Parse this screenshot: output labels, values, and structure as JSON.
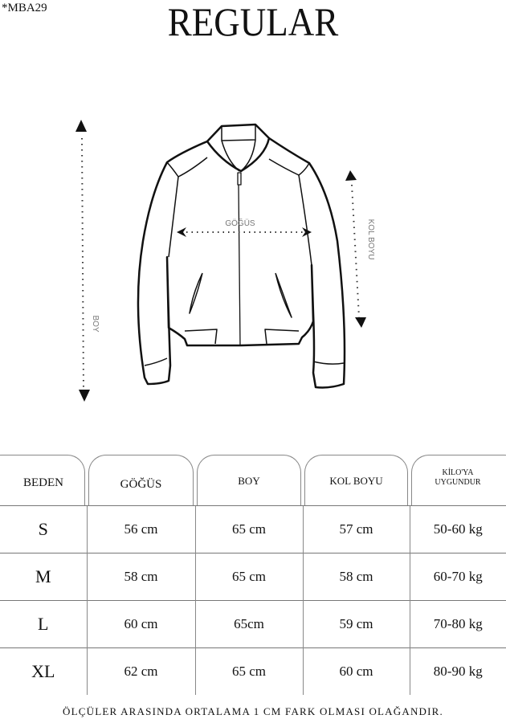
{
  "product_code": "*MBA29",
  "fit_title": "REGULAR",
  "diagram": {
    "chest_label": "GÖĞÜS",
    "length_label": "BOY",
    "sleeve_label": "KOL BOYU"
  },
  "table": {
    "headers": [
      "BEDEN",
      "GÖĞÜS",
      "BOY",
      "KOL BOYU",
      "KİLO'YA",
      "UYGUNDUR"
    ],
    "rows": [
      [
        "S",
        "56 cm",
        "65 cm",
        "57  cm",
        "50-60 kg"
      ],
      [
        "M",
        "58 cm",
        "65 cm",
        "58 cm",
        "60-70 kg"
      ],
      [
        "L",
        "60 cm",
        "65cm",
        "59 cm",
        "70-80 kg"
      ],
      [
        "XL",
        "62 cm",
        "65 cm",
        "60 cm",
        "80-90 kg"
      ]
    ]
  },
  "footer_note": "ÖLÇÜLER ARASINDA ORTALAMA 1 CM FARK OLMASI OLAĞANDIR."
}
